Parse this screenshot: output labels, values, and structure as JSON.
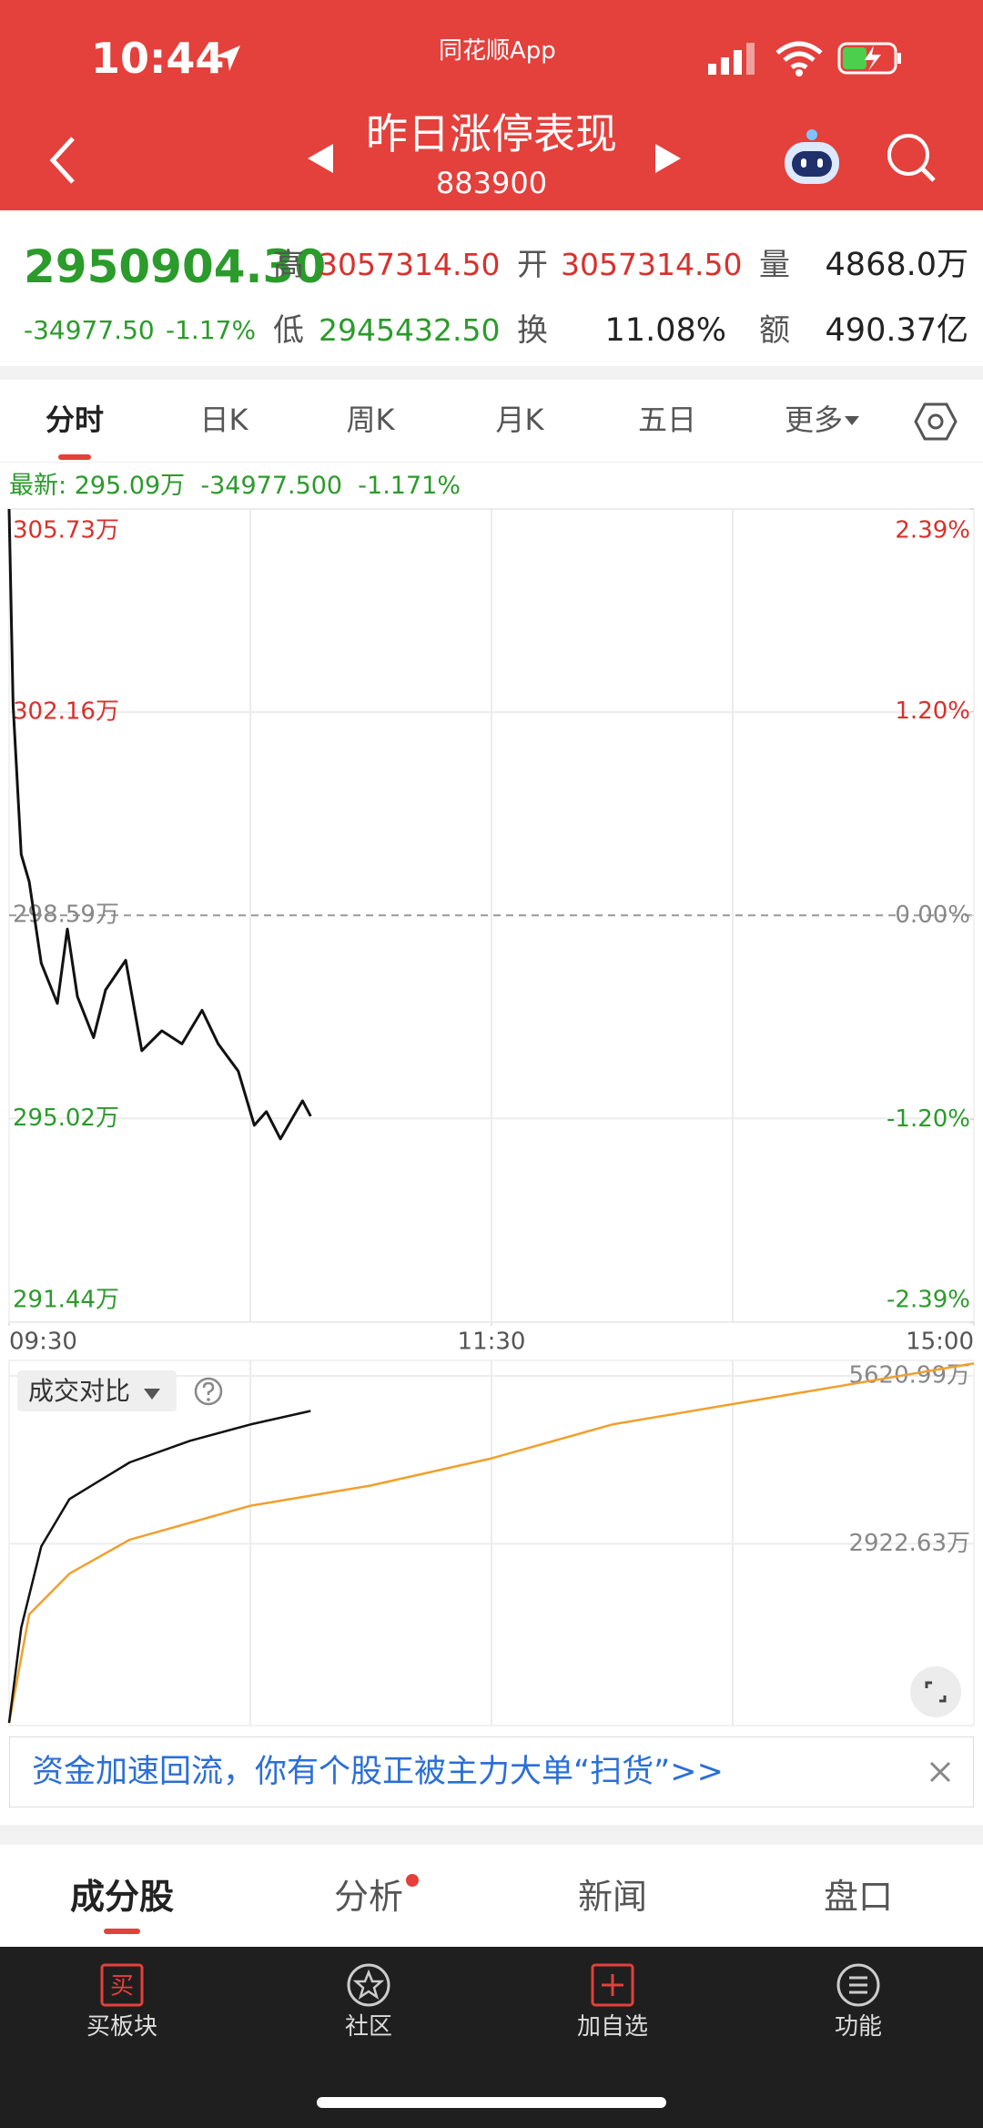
{
  "status_bar": {
    "time": "10:44",
    "app": "同花顺App"
  },
  "header": {
    "title": "昨日涨停表现",
    "code": "883900"
  },
  "quote": {
    "price": "2950904.30",
    "change": "-34977.50",
    "change_pct": "-1.17%",
    "high_label": "高",
    "high": "3057314.50",
    "open_label": "开",
    "open": "3057314.50",
    "volume_label": "量",
    "volume": "4868.0万",
    "low_label": "低",
    "low": "2945432.50",
    "turnover_label": "换",
    "turnover": "11.08%",
    "amount_label": "额",
    "amount": "490.37亿"
  },
  "tabs": [
    "分时",
    "日K",
    "周K",
    "月K",
    "五日",
    "更多"
  ],
  "latest": {
    "label": "最新:",
    "price": "295.09万",
    "change": "-34977.500",
    "pct": "-1.171%"
  },
  "chart_data": [
    {
      "type": "line",
      "y_axis_side": "left",
      "xlim": [
        0,
        240
      ],
      "xticks": [
        {
          "value": 0,
          "label": "09:30"
        },
        {
          "value": 120,
          "label": "11:30"
        },
        {
          "value": 240,
          "label": "15:00"
        }
      ],
      "xgrid": [
        60,
        120,
        180
      ],
      "ylim": [
        291.44,
        305.73
      ],
      "yticks": [
        {
          "value": 305.73,
          "label": "305.73万"
        },
        {
          "value": 302.16,
          "label": "302.16万"
        },
        {
          "value": 298.59,
          "label": "298.59万"
        },
        {
          "value": 295.02,
          "label": "295.02万"
        },
        {
          "value": 291.44,
          "label": "291.44万"
        }
      ],
      "y2lim": [
        -2.39,
        2.39
      ],
      "y2ticks": [
        {
          "value": 2.39,
          "label": "2.39%"
        },
        {
          "value": 1.2,
          "label": "1.20%"
        },
        {
          "value": 0,
          "label": "0.00%"
        },
        {
          "value": -1.2,
          "label": "-1.20%"
        },
        {
          "value": -2.39,
          "label": "-2.39%"
        }
      ],
      "series": [
        {
          "color": "#111111",
          "x": [
            0,
            1,
            3,
            5,
            8,
            12,
            14.5,
            17,
            21,
            24,
            29,
            33,
            38,
            43,
            48,
            52,
            57,
            61,
            64,
            67.5,
            71,
            73,
            75
          ],
          "values": [
            305.73,
            302.28,
            299.66,
            299.18,
            297.75,
            297.04,
            298.35,
            297.16,
            296.44,
            297.28,
            297.8,
            296.21,
            296.56,
            296.33,
            296.92,
            296.33,
            295.85,
            294.9,
            295.14,
            294.66,
            295.09,
            295.33,
            295.06
          ]
        }
      ]
    },
    {
      "type": "line",
      "y_axis_side": "right",
      "xlim": [
        0,
        240
      ],
      "xgrid": [
        60,
        120,
        180
      ],
      "ylim": [
        0,
        5870
      ],
      "yticks": [
        {
          "value": 5620.99,
          "label": "5620.99万"
        },
        {
          "value": 2922.63,
          "label": "2922.63万"
        }
      ],
      "series": [
        {
          "color": "#f0a02c",
          "x": [
            0,
            5,
            15,
            30,
            60,
            90,
            120,
            150,
            180,
            210,
            240
          ],
          "values": [
            40,
            1788,
            2442,
            2987,
            3532,
            3859,
            4295,
            4840,
            5167,
            5494,
            5821
          ]
        },
        {
          "color": "#111111",
          "x": [
            0,
            3,
            8,
            15,
            30,
            45,
            60,
            75
          ],
          "values": [
            44,
            1570,
            2878,
            3641,
            4230,
            4578,
            4840,
            5058
          ]
        }
      ]
    }
  ],
  "volume_selector": "成交对比",
  "banner": "资金加速回流，你有个股正被主力大单“扫货”>>",
  "bottom_tabs": [
    "成分股",
    "分析",
    "新闻",
    "盘口"
  ],
  "nav": [
    "买板块",
    "社区",
    "加自选",
    "功能"
  ]
}
